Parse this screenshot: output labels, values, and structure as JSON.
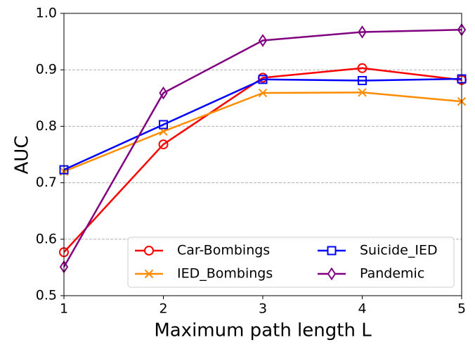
{
  "chart_data": {
    "type": "line",
    "xlabel": "Maximum path length L",
    "ylabel": "AUC",
    "x": [
      1,
      2,
      3,
      4,
      5
    ],
    "xlim": [
      1,
      5
    ],
    "xticks": [
      1,
      2,
      3,
      4,
      5
    ],
    "ylim": [
      0.5,
      1.0
    ],
    "yticks": [
      0.5,
      0.6,
      0.7,
      0.8,
      0.9,
      {
        "value": 1.0,
        "label": "1.0"
      }
    ],
    "grid": true,
    "legend": "lower right",
    "series": [
      {
        "name": "Car-Bombings",
        "color": "#ff0000",
        "marker": "circle",
        "values": [
          0.577,
          0.768,
          0.886,
          0.903,
          0.882
        ]
      },
      {
        "name": "IED_Bombings",
        "color": "#ff8c00",
        "marker": "x",
        "values": [
          0.72,
          0.791,
          0.859,
          0.86,
          0.844
        ]
      },
      {
        "name": "Suicide_IED",
        "color": "#0000ff",
        "marker": "square",
        "values": [
          0.723,
          0.803,
          0.883,
          0.881,
          0.884
        ]
      },
      {
        "name": "Pandemic",
        "color": "#800080",
        "marker": "diamond",
        "values": [
          0.551,
          0.859,
          0.952,
          0.967,
          0.971
        ]
      }
    ]
  }
}
